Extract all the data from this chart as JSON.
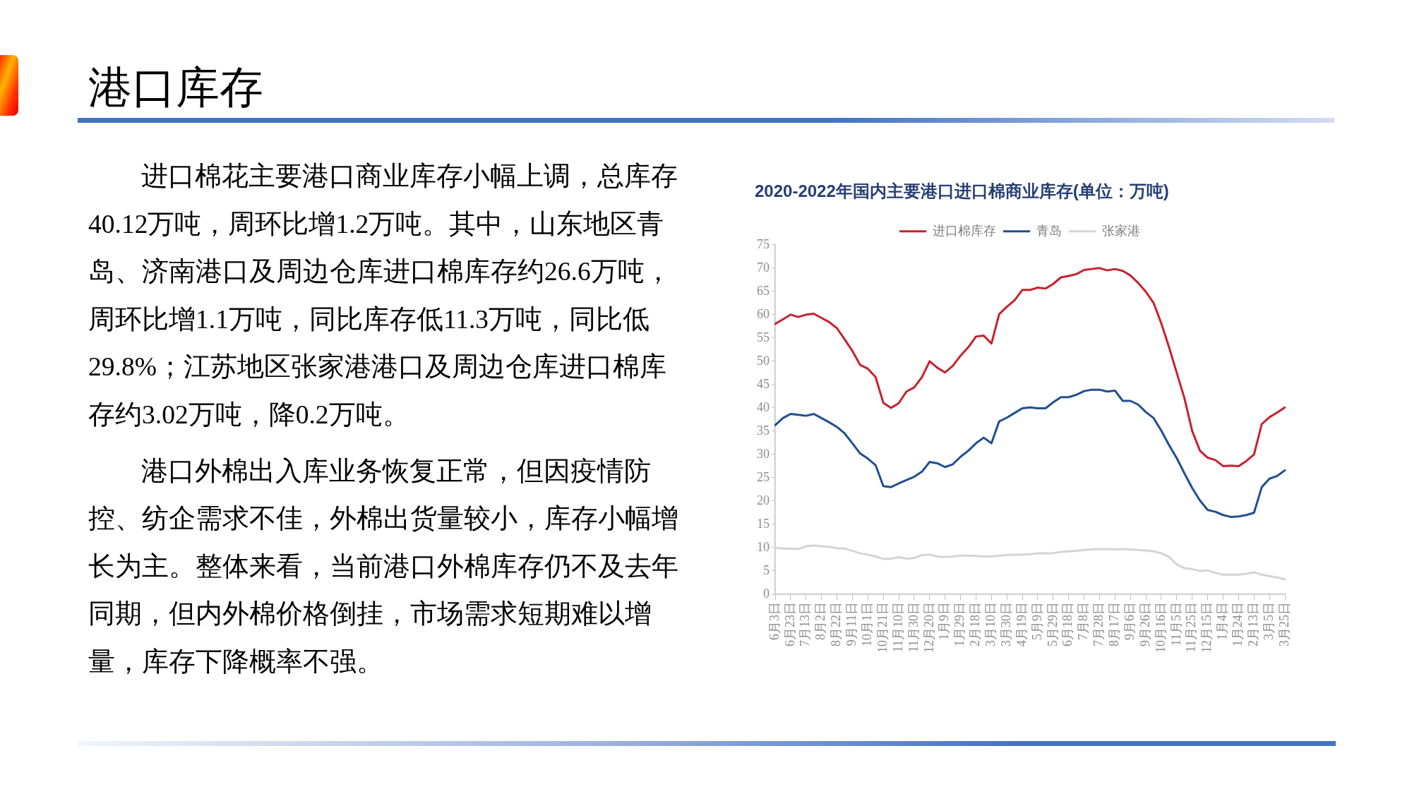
{
  "chart_data": [
    {
      "type": "other",
      "title": "港口库存",
      "annotations": [
        "进口棉花主要港口商业库存小幅上调，总库存40.12万吨，周环比增1.2万吨。其中，山东地区青岛、济南港口及周边仓库进口棉库存约26.6万吨，周环比增1.1万吨，同比库存低11.3万吨，同比低29.8%；江苏地区张家港港口及周边仓库进口棉库存约3.02万吨，降0.2万吨。",
        "港口外棉出入库业务恢复正常，但因疫情防控、纺企需求不佳，外棉出货量较小，库存小幅增长为主。整体来看，当前港口外棉库存仍不及去年同期，但内外棉价格倒挂，市场需求短期难以增量，库存下降概率不强。"
      ]
    },
    {
      "type": "line",
      "title": "2020-2022年国内主要港口进口棉商业库存(单位：万吨)",
      "categories": [
        "6月3日",
        null,
        "6月23日",
        null,
        "7月13日",
        null,
        "8月2日",
        null,
        "8月22日",
        null,
        "9月11日",
        null,
        "10月1日",
        null,
        "10月21日",
        null,
        "11月10日",
        null,
        "11月30日",
        null,
        "12月20日",
        null,
        "1月9日",
        null,
        "1月29日",
        null,
        "2月18日",
        null,
        "3月10日",
        null,
        "3月30日",
        null,
        "4月19日",
        null,
        "5月9日",
        null,
        "5月29日",
        null,
        "6月18日",
        null,
        "7月8日",
        null,
        "7月28日",
        null,
        "8月17日",
        null,
        "9月6日",
        null,
        "9月26日",
        null,
        "10月16日",
        null,
        "11月5日",
        null,
        "11月25日",
        null,
        "12月15日",
        null,
        "1月4日",
        null,
        "1月24日",
        null,
        "2月13日",
        null,
        "3月5日",
        null,
        "3月25日"
      ],
      "series": [
        {
          "name": "进口棉库存",
          "color": "#c9202e",
          "values": [
            58,
            59,
            60,
            59.5,
            60,
            60.2,
            59.3,
            58.4,
            57.1,
            54.7,
            52.2,
            49.2,
            48.4,
            46.6,
            41.1,
            40,
            41,
            43.5,
            44.4,
            46.6,
            50,
            48.6,
            47.6,
            49,
            51.2,
            53,
            55.3,
            55.5,
            53.8,
            60.1,
            61.7,
            63.1,
            65.3,
            65.3,
            65.8,
            65.6,
            66.6,
            68,
            68.3,
            68.7,
            69.6,
            69.8,
            70,
            69.5,
            69.8,
            69.4,
            68.4,
            66.8,
            64.9,
            62.5,
            58.1,
            53,
            47.5,
            42,
            35,
            30.8,
            29.3,
            28.8,
            27.5,
            27.6,
            27.5,
            28.6,
            30,
            36.5,
            38,
            39,
            40.1
          ]
        },
        {
          "name": "青岛",
          "color": "#1f4e93",
          "values": [
            36.3,
            37.8,
            38.7,
            38.5,
            38.3,
            38.7,
            37.8,
            36.9,
            35.9,
            34.5,
            32.4,
            30.2,
            29.1,
            27.7,
            23.2,
            23,
            23.8,
            24.5,
            25.2,
            26.3,
            28.4,
            28.1,
            27.3,
            27.9,
            29.5,
            30.8,
            32.4,
            33.6,
            32.4,
            37.1,
            37.9,
            38.9,
            39.9,
            40.1,
            39.9,
            39.9,
            41.2,
            42.3,
            42.3,
            42.8,
            43.6,
            43.9,
            43.9,
            43.5,
            43.7,
            41.5,
            41.5,
            40.7,
            39.1,
            37.8,
            35.1,
            32,
            29.2,
            25.9,
            22.8,
            20.1,
            18.1,
            17.7,
            17,
            16.6,
            16.7,
            17,
            17.5,
            23,
            24.8,
            25.4,
            26.6
          ]
        },
        {
          "name": "张家港",
          "color": "#d4d4d4",
          "values": [
            10,
            9.8,
            9.8,
            9.7,
            10.3,
            10.5,
            10.3,
            10.2,
            9.9,
            9.8,
            9.3,
            8.8,
            8.5,
            8.1,
            7.6,
            7.6,
            8,
            7.6,
            7.8,
            8.4,
            8.5,
            8.1,
            8,
            8.1,
            8.3,
            8.3,
            8.2,
            8.1,
            8.1,
            8.3,
            8.4,
            8.5,
            8.5,
            8.6,
            8.8,
            8.8,
            8.8,
            9.1,
            9.2,
            9.3,
            9.5,
            9.6,
            9.7,
            9.7,
            9.6,
            9.7,
            9.6,
            9.5,
            9.4,
            9.2,
            8.8,
            8,
            6.4,
            5.6,
            5.4,
            5,
            5.1,
            4.6,
            4.2,
            4.2,
            4.2,
            4.4,
            4.7,
            4.2,
            3.9,
            3.6,
            3.2
          ]
        }
      ],
      "ylim": [
        0,
        75
      ],
      "yticks": [
        0,
        5,
        10,
        15,
        20,
        25,
        30,
        35,
        40,
        45,
        50,
        55,
        60,
        65,
        70,
        75
      ],
      "legend": "top"
    }
  ]
}
